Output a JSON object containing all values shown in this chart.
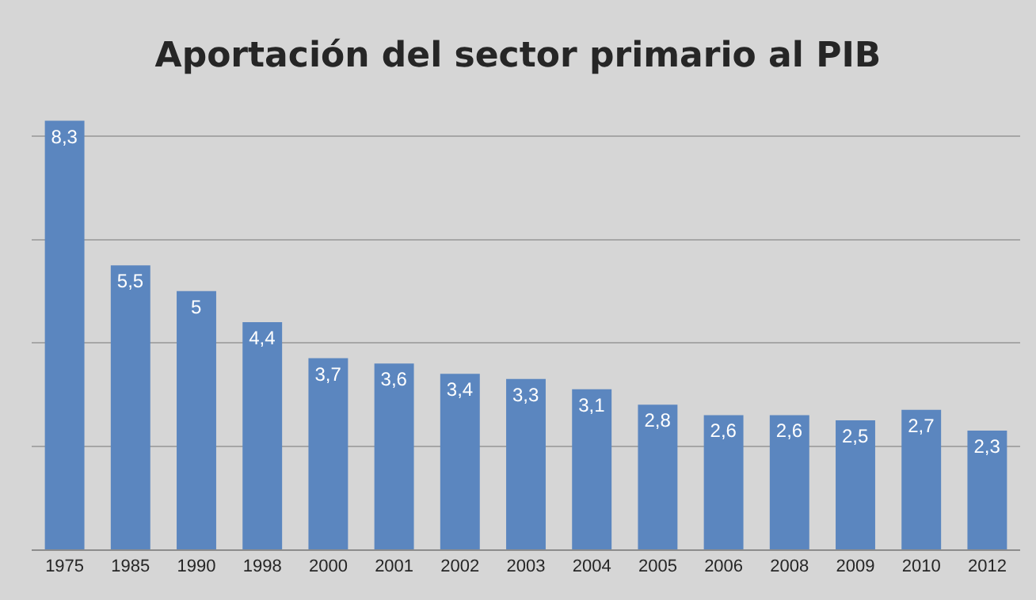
{
  "chart_data": {
    "type": "bar",
    "title": "Aportación del sector primario al PIB",
    "categories": [
      "1975",
      "1985",
      "1990",
      "1998",
      "2000",
      "2001",
      "2002",
      "2003",
      "2004",
      "2005",
      "2006",
      "2008",
      "2009",
      "2010",
      "2012"
    ],
    "series": [
      {
        "color": "#5b86bf",
        "values": [
          8.3,
          5.5,
          5,
          4.4,
          3.7,
          3.6,
          3.4,
          3.3,
          3.1,
          2.8,
          2.6,
          2.6,
          2.5,
          2.7,
          2.3
        ],
        "value_labels": [
          "8,3",
          "5,5",
          "5",
          "4,4",
          "3,7",
          "3,6",
          "3,4",
          "3,3",
          "3,1",
          "2,8",
          "2,6",
          "2,6",
          "2,5",
          "2,7",
          "2,3"
        ]
      }
    ],
    "grid": "y",
    "tick_labels": "x",
    "legend": false
  }
}
